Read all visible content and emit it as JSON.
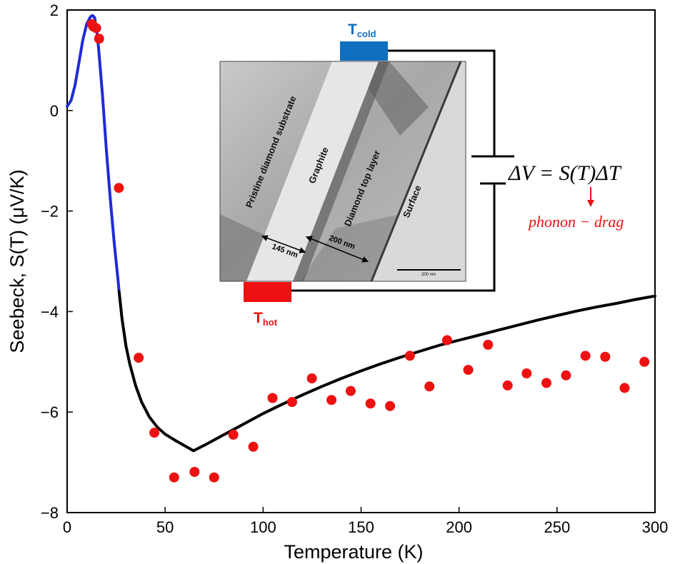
{
  "chart_data": {
    "type": "scatter",
    "xlabel": "Temperature (K)",
    "ylabel": "Seebeck, S(T) (μV/K)",
    "xlim": [
      0,
      300
    ],
    "ylim": [
      -8,
      2
    ],
    "x_ticks": [
      0,
      50,
      100,
      150,
      200,
      250,
      300
    ],
    "y_ticks": [
      -8,
      -6,
      -4,
      -2,
      0,
      2
    ],
    "grid": false,
    "series": [
      {
        "kind": "points",
        "color": "#ee1111",
        "x": [
          12.7,
          13.4,
          14.8,
          16.3,
          26.4,
          36.5,
          44.5,
          54.6,
          65.0,
          75.0,
          84.8,
          95.0,
          104.8,
          114.8,
          124.9,
          134.9,
          144.7,
          154.8,
          164.8,
          174.9,
          184.9,
          193.9,
          204.7,
          214.8,
          224.8,
          234.5,
          244.6,
          254.6,
          264.5,
          274.6,
          284.5,
          294.6
        ],
        "y": [
          1.72,
          1.67,
          1.64,
          1.43,
          -1.54,
          -4.92,
          -6.41,
          -7.3,
          -7.19,
          -7.3,
          -6.45,
          -6.69,
          -5.72,
          -5.8,
          -5.33,
          -5.76,
          -5.58,
          -5.83,
          -5.88,
          -4.88,
          -5.49,
          -4.57,
          -5.16,
          -4.66,
          -5.47,
          -5.23,
          -5.42,
          -5.27,
          -4.88,
          -4.9,
          -5.52,
          -5.0
        ]
      },
      {
        "kind": "line",
        "color": "#1f2bd6",
        "x": [
          0,
          2,
          4,
          6,
          8,
          10,
          12,
          13,
          14,
          15,
          16,
          18,
          20,
          22,
          24,
          26,
          26.5
        ],
        "y": [
          0.08,
          0.2,
          0.5,
          0.95,
          1.4,
          1.72,
          1.87,
          1.89,
          1.85,
          1.62,
          1.26,
          0.32,
          -0.78,
          -1.76,
          -2.62,
          -3.38,
          -3.6
        ]
      },
      {
        "kind": "line",
        "color": "#000000",
        "x": [
          26.5,
          28,
          30,
          32,
          35,
          38,
          42,
          46,
          50,
          55,
          60,
          64.5,
          70,
          80,
          90,
          100,
          110,
          120,
          130,
          140,
          150,
          160,
          170,
          180,
          190,
          200,
          210,
          220,
          230,
          240,
          250,
          260,
          270,
          280,
          290,
          300
        ],
        "y": [
          -3.6,
          -4.14,
          -4.68,
          -5.05,
          -5.48,
          -5.8,
          -6.1,
          -6.3,
          -6.44,
          -6.56,
          -6.67,
          -6.77,
          -6.66,
          -6.45,
          -6.24,
          -6.03,
          -5.84,
          -5.66,
          -5.49,
          -5.33,
          -5.18,
          -5.04,
          -4.91,
          -4.79,
          -4.67,
          -4.57,
          -4.47,
          -4.37,
          -4.27,
          -4.17,
          -4.08,
          -3.99,
          -3.91,
          -3.84,
          -3.76,
          -3.69
        ]
      }
    ],
    "annotations": {
      "equation": "ΔV = S(T)ΔT",
      "arrow_label": "phonon − drag",
      "t_cold_main": "T",
      "t_cold_sub": "cold",
      "t_hot_main": "T",
      "t_hot_sub": "hot",
      "inset": {
        "labels": [
          "Pristine diamond substrate",
          "Graphite",
          "Diamond top layer",
          "Surface"
        ],
        "dim_a": "145 nm",
        "dim_b": "200 nm",
        "scalebar": "200 nm"
      }
    },
    "colors": {
      "points": "#ee1111",
      "low_t_fit": "#1f2bd6",
      "fit": "#000000",
      "t_cold": "#0e6fbf",
      "t_hot": "#ee1111",
      "phonon_drag": "#ee1111"
    }
  }
}
